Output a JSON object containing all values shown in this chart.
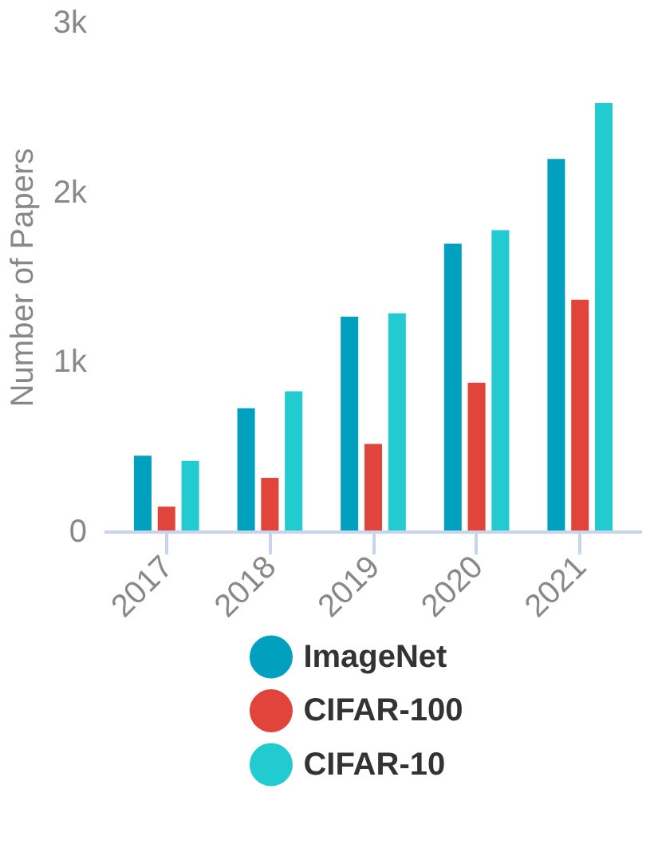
{
  "chart_data": {
    "type": "bar",
    "ylabel": "Number of Papers",
    "categories": [
      "2017",
      "2018",
      "2019",
      "2020",
      "2021"
    ],
    "series": [
      {
        "name": "ImageNet",
        "color": "#00a0be",
        "values": [
          450,
          730,
          1270,
          1700,
          2200
        ]
      },
      {
        "name": "CIFAR-100",
        "color": "#e0443a",
        "values": [
          150,
          320,
          520,
          880,
          1370
        ]
      },
      {
        "name": "CIFAR-10",
        "color": "#22cbd0",
        "values": [
          420,
          830,
          1290,
          1780,
          2530
        ]
      }
    ],
    "ylim": [
      0,
      3000
    ],
    "yticks": [
      {
        "value": 0,
        "label": "0"
      },
      {
        "value": 1000,
        "label": "1k"
      },
      {
        "value": 2000,
        "label": "2k"
      },
      {
        "value": 3000,
        "label": "3k"
      }
    ],
    "grid": false,
    "legend": "bottom",
    "marker": "circle"
  }
}
